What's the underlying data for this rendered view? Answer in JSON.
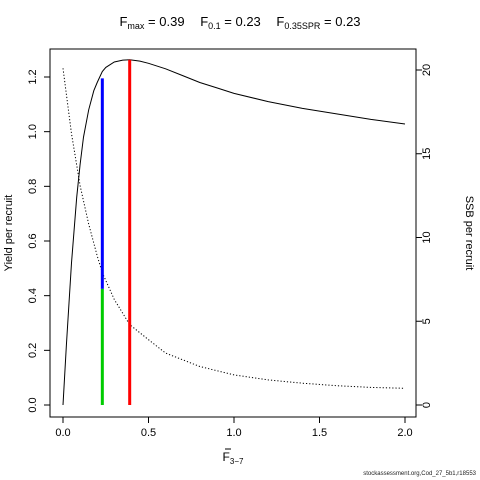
{
  "title": {
    "fmax_label": "F",
    "fmax_sub": "max",
    "fmax_value": "= 0.39",
    "f01_label": "F",
    "f01_sub": "0.1",
    "f01_value": "= 0.23",
    "fspr_label": "F",
    "fspr_sub": "0.35SPR",
    "fspr_value": "= 0.23"
  },
  "footer": "stockassessment.org,Cod_27_5b1,r18553",
  "chart_data": {
    "type": "line",
    "xlabel": "F",
    "xlabel_sub": "3−7",
    "ylabel_left": "Yield per recruit",
    "ylabel_right": "SSB per recruit",
    "xlim": [
      0,
      2
    ],
    "ylim_left": [
      0,
      1.26
    ],
    "ylim_right": [
      0,
      20
    ],
    "x_ticks": [
      "0.0",
      "0.5",
      "1.0",
      "1.5",
      "2.0"
    ],
    "y_left_ticks": [
      "0.0",
      "0.2",
      "0.4",
      "0.6",
      "0.8",
      "1.0",
      "1.2"
    ],
    "y_right_ticks": [
      "0",
      "5",
      "10",
      "15",
      "20"
    ],
    "series": [
      {
        "style": "solid",
        "axis": "left",
        "color": "#000000",
        "x": [
          0,
          0.02,
          0.05,
          0.08,
          0.1,
          0.12,
          0.15,
          0.18,
          0.2,
          0.23,
          0.25,
          0.3,
          0.35,
          0.39,
          0.45,
          0.5,
          0.6,
          0.7,
          0.8,
          0.9,
          1.0,
          1.2,
          1.4,
          1.6,
          1.8,
          2.0
        ],
        "y": [
          0.0,
          0.22,
          0.52,
          0.76,
          0.88,
          0.98,
          1.08,
          1.15,
          1.18,
          1.22,
          1.235,
          1.255,
          1.262,
          1.263,
          1.258,
          1.25,
          1.23,
          1.205,
          1.18,
          1.16,
          1.14,
          1.11,
          1.085,
          1.065,
          1.045,
          1.028
        ]
      },
      {
        "style": "dotted",
        "axis": "right",
        "color": "#000000",
        "x": [
          0,
          0.05,
          0.1,
          0.15,
          0.2,
          0.23,
          0.3,
          0.39,
          0.5,
          0.6,
          0.8,
          1.0,
          1.2,
          1.4,
          1.6,
          1.8,
          2.0
        ],
        "y": [
          20.1,
          16.2,
          13.1,
          10.8,
          8.9,
          7.9,
          6.3,
          4.8,
          3.9,
          3.1,
          2.3,
          1.8,
          1.5,
          1.3,
          1.15,
          1.05,
          1.0
        ]
      }
    ],
    "reference_lines": [
      {
        "x": 0.39,
        "y_from": 0,
        "y_to": 1.263,
        "color": "#ff0000",
        "label": "Fmax"
      },
      {
        "x": 0.23,
        "y_from": 0.425,
        "y_to": 1.195,
        "color": "#0000ff",
        "label": "F0.1"
      },
      {
        "x": 0.23,
        "y_from": 0,
        "y_to": 0.425,
        "color": "#00cc00",
        "label": "F0.35SPR"
      }
    ]
  }
}
